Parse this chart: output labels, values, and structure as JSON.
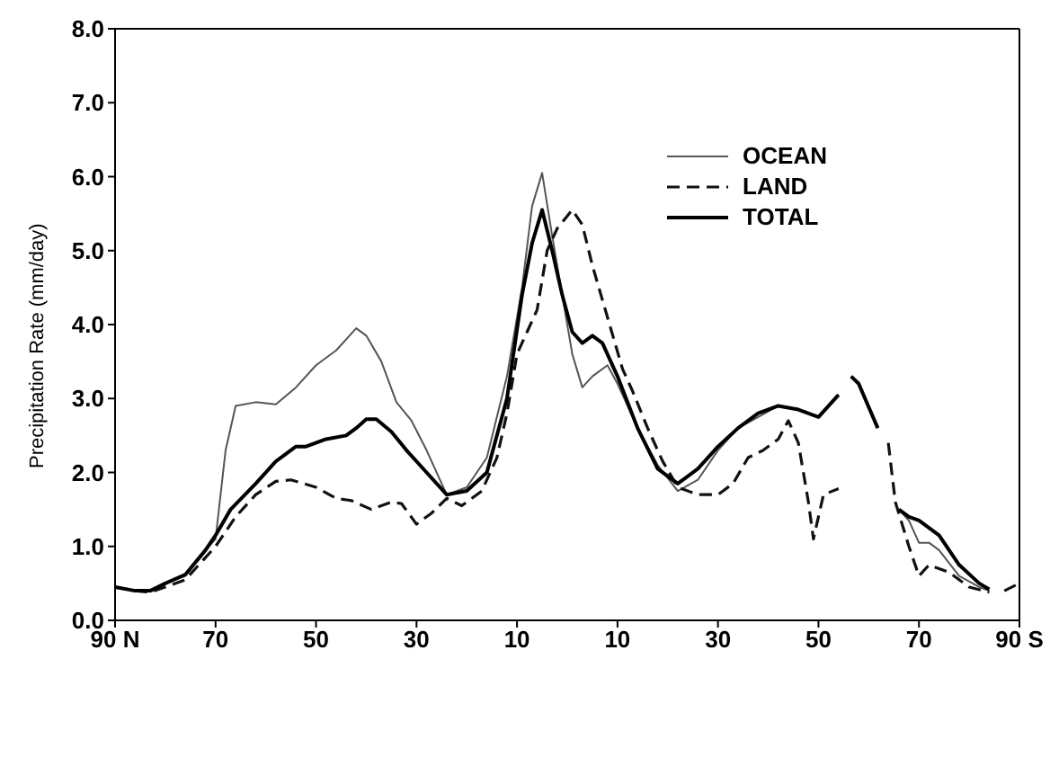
{
  "chart_data": {
    "type": "line",
    "ylabel": "Precipitation Rate (mm/day)",
    "xlim": [
      90,
      -90
    ],
    "xticks": [
      {
        "value": 90,
        "label": "90 N"
      },
      70,
      50,
      30,
      10,
      {
        "value": -10,
        "label": "10"
      },
      {
        "value": -30,
        "label": "30"
      },
      {
        "value": -50,
        "label": "50"
      },
      {
        "value": -70,
        "label": "70"
      },
      {
        "value": -90,
        "label": "90 S"
      }
    ],
    "ylim": [
      0,
      8
    ],
    "yticks": [
      {
        "value": 0,
        "label": "0.0"
      },
      {
        "value": 1,
        "label": "1.0"
      },
      {
        "value": 2,
        "label": "2.0"
      },
      {
        "value": 3,
        "label": "3.0"
      },
      {
        "value": 4,
        "label": "4.0"
      },
      {
        "value": 5,
        "label": "5.0"
      },
      {
        "value": 6,
        "label": "6.0"
      },
      {
        "value": 7,
        "label": "7.0"
      },
      {
        "value": 8,
        "label": "8.0"
      }
    ],
    "legend": "top right",
    "marker": "none",
    "series": [
      {
        "name": "OCEAN",
        "color": "#555555",
        "line_style": "solid",
        "x": [
          90,
          86,
          83,
          80,
          76,
          72,
          70,
          68,
          66,
          62,
          58,
          54,
          50,
          46,
          42,
          40,
          37,
          34,
          31,
          28,
          24,
          20,
          16,
          12,
          9,
          7,
          5,
          3,
          1,
          -1,
          -3,
          -5,
          -8,
          -10,
          -14,
          -18,
          -22,
          -26,
          -30,
          -34,
          -38,
          -42,
          -46,
          -50,
          -54,
          -55,
          -56.5,
          -58,
          -61.8,
          -63,
          -66,
          -68,
          -70,
          -72,
          -74,
          -78,
          -82,
          -84
        ],
        "values": [
          0.45,
          0.4,
          0.4,
          0.5,
          0.6,
          0.95,
          1.1,
          2.3,
          2.9,
          2.95,
          2.92,
          3.15,
          3.45,
          3.65,
          3.95,
          3.85,
          3.5,
          2.95,
          2.7,
          2.3,
          1.7,
          1.8,
          2.2,
          3.3,
          4.5,
          5.6,
          6.05,
          5.2,
          4.4,
          3.6,
          3.15,
          3.3,
          3.45,
          3.2,
          2.6,
          2.1,
          1.75,
          1.9,
          2.3,
          2.6,
          2.75,
          2.9,
          2.85,
          2.75,
          3.05,
          null,
          3.3,
          3.2,
          2.6,
          null,
          1.5,
          1.35,
          1.05,
          1.05,
          0.95,
          0.6,
          0.45,
          0.4
        ]
      },
      {
        "name": "LAND",
        "color": "#111111",
        "line_style": "dashed",
        "x": [
          90,
          86,
          83,
          80,
          76,
          72,
          70,
          66,
          62,
          58,
          55,
          50,
          46,
          43,
          39,
          35,
          33,
          30,
          27,
          24,
          21,
          17,
          14,
          12,
          10,
          8,
          6,
          4,
          2,
          -1,
          -3,
          -5,
          -8,
          -11,
          -13,
          -16,
          -19,
          -22,
          -26,
          -30,
          -33,
          -36,
          -39,
          -42,
          -44,
          -46,
          -48,
          -49,
          -51,
          -54,
          -60,
          -63.9,
          -65.3,
          -68,
          -70,
          -72,
          -76,
          -80,
          -84,
          -85,
          -87,
          -90
        ],
        "values": [
          0.45,
          0.4,
          0.38,
          0.45,
          0.55,
          0.85,
          1.0,
          1.4,
          1.7,
          1.88,
          1.9,
          1.8,
          1.65,
          1.62,
          1.5,
          1.6,
          1.58,
          1.3,
          1.45,
          1.65,
          1.55,
          1.75,
          2.2,
          2.8,
          3.6,
          3.9,
          4.2,
          5.0,
          5.3,
          5.55,
          5.35,
          4.8,
          4.1,
          3.4,
          3.1,
          2.6,
          2.15,
          1.8,
          1.7,
          1.7,
          1.85,
          2.2,
          2.3,
          2.45,
          2.7,
          2.4,
          1.6,
          1.1,
          1.7,
          1.78,
          null,
          2.4,
          1.6,
          1.0,
          0.6,
          0.75,
          0.65,
          0.45,
          0.38,
          null,
          0.4,
          0.5
        ]
      },
      {
        "name": "TOTAL",
        "color": "#000000",
        "line_style": "solid",
        "x": [
          90,
          86,
          83,
          80,
          76,
          72,
          70,
          67,
          62,
          58,
          54,
          52,
          48,
          44,
          42,
          40,
          38,
          35,
          32,
          28,
          24,
          20,
          16,
          12,
          9,
          7,
          5,
          3,
          1,
          -1,
          -3,
          -5,
          -7,
          -10,
          -14,
          -18,
          -22,
          -26,
          -30,
          -34,
          -38,
          -42,
          -46,
          -50,
          -54,
          -55,
          -56.5,
          -58,
          -61.8,
          -63,
          -66,
          -68,
          -70,
          -74,
          -78,
          -82,
          -84
        ],
        "values": [
          0.45,
          0.4,
          0.4,
          0.5,
          0.62,
          0.95,
          1.15,
          1.5,
          1.85,
          2.15,
          2.35,
          2.35,
          2.45,
          2.5,
          2.6,
          2.72,
          2.72,
          2.55,
          2.3,
          2.0,
          1.7,
          1.75,
          2.0,
          3.0,
          4.4,
          5.1,
          5.55,
          5.0,
          4.4,
          3.9,
          3.75,
          3.85,
          3.75,
          3.3,
          2.6,
          2.05,
          1.85,
          2.05,
          2.35,
          2.6,
          2.8,
          2.9,
          2.85,
          2.75,
          3.05,
          null,
          3.3,
          3.2,
          2.6,
          null,
          1.5,
          1.4,
          1.35,
          1.15,
          0.75,
          0.5,
          0.42
        ]
      }
    ]
  }
}
